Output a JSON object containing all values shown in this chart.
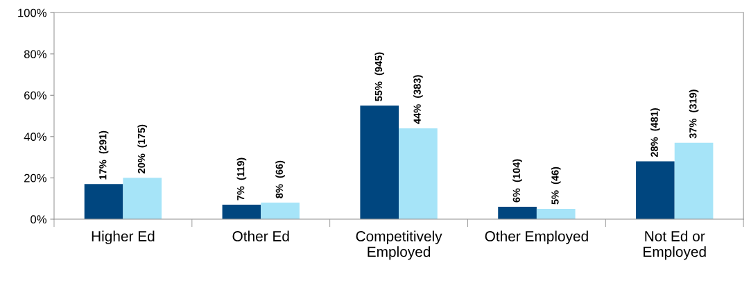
{
  "chart_data": {
    "type": "bar",
    "categories": [
      "Higher Ed",
      "Other Ed",
      "Competitively\nEmployed",
      "Other Employed",
      "Not Ed or\nEmployed"
    ],
    "series": [
      {
        "color": "#00467f",
        "values": [
          17,
          7,
          55,
          6,
          28
        ],
        "value_labels": [
          "17%  (291)",
          "7%  (119)",
          "55%  (945)",
          "6%  (104)",
          "28%  (481)"
        ]
      },
      {
        "color": "#a6e4f8",
        "values": [
          20,
          8,
          44,
          5,
          37
        ],
        "value_labels": [
          "20%  (175)",
          "8%  (66)",
          "44%  (383)",
          "5%  (46)",
          "37%  (319)"
        ]
      }
    ],
    "ylim": [
      0,
      100
    ],
    "yticks": [
      {
        "value": 0,
        "label": "0%"
      },
      {
        "value": 20,
        "label": "20%"
      },
      {
        "value": 40,
        "label": "40%"
      },
      {
        "value": 60,
        "label": "60%"
      },
      {
        "value": 80,
        "label": "80%"
      },
      {
        "value": 100,
        "label": "100%"
      }
    ],
    "grid": false,
    "legend": false
  }
}
